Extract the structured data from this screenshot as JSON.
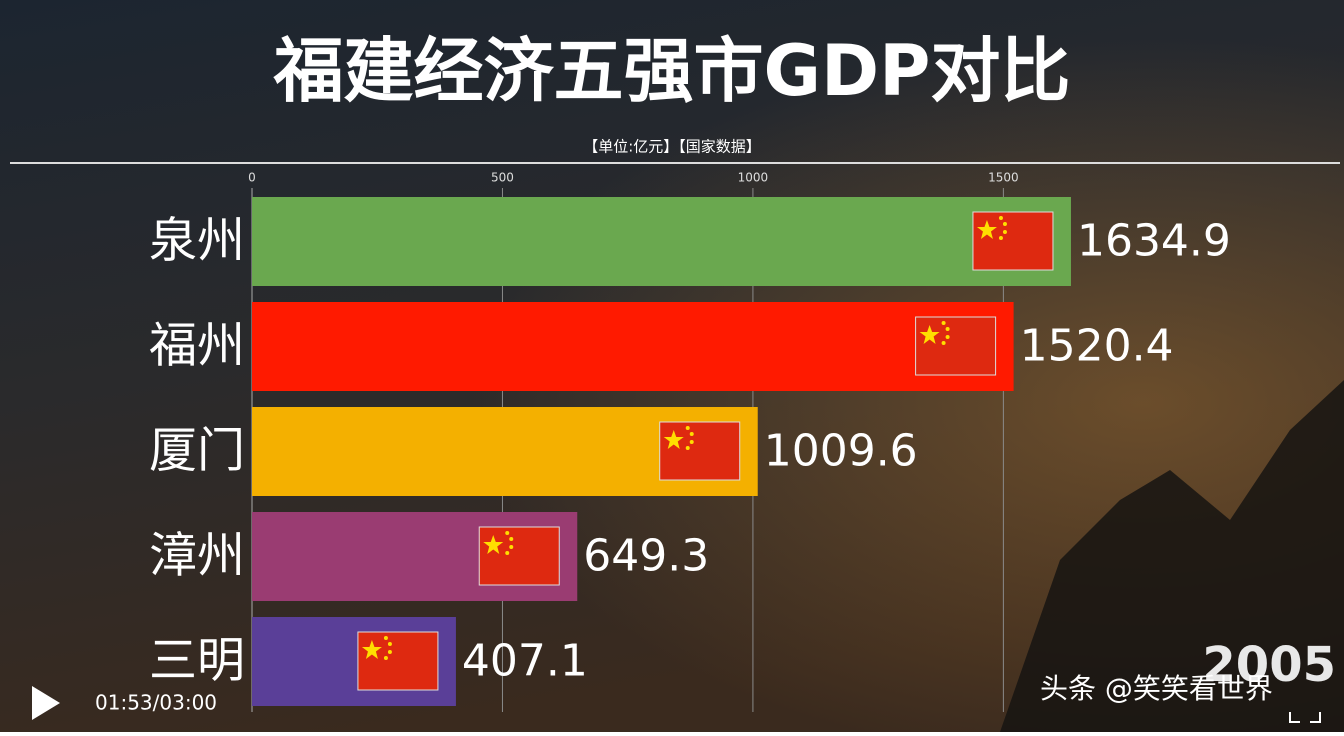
{
  "chart_data": {
    "type": "bar",
    "orientation": "horizontal",
    "title": "福建经济五强市GDP对比",
    "subtitle": "【单位:亿元】【国家数据】",
    "categories": [
      "泉州",
      "福州",
      "厦门",
      "漳州",
      "三明"
    ],
    "values": [
      1634.9,
      1520.4,
      1009.6,
      649.3,
      407.1
    ],
    "colors": [
      "#6aa84f",
      "#ff1a00",
      "#f4b000",
      "#9a3c72",
      "#5a3f98"
    ],
    "xlim": [
      0,
      2170
    ],
    "xticks": [
      0,
      500,
      1000,
      1500
    ],
    "grid": true,
    "year_label": "2005"
  },
  "player": {
    "time": "01:53/03:00",
    "watermark": "头条 @笑笑看世界"
  }
}
